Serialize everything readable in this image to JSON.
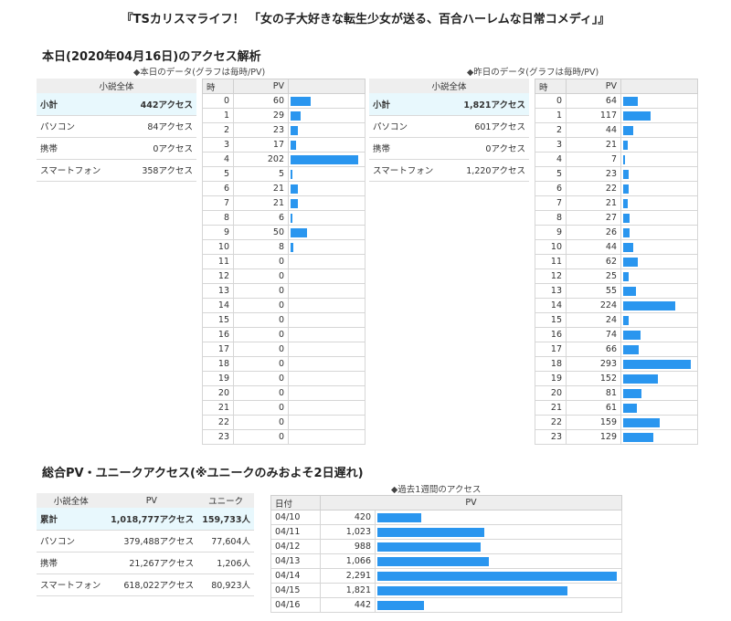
{
  "page_title": "『TSカリスマライフ！ 「女の子大好きな転生少女が送る、百合ハーレムな日常コメディ」』",
  "today": {
    "heading": "本日(2020年04月16日)のアクセス解析",
    "caption": "◆本日のデータ(グラフは毎時/PV)",
    "summary": {
      "header": "小説全体",
      "rows": [
        {
          "label": "小計",
          "value": "442アクセス"
        },
        {
          "label": "パソコン",
          "value": "84アクセス"
        },
        {
          "label": "携帯",
          "value": "0アクセス"
        },
        {
          "label": "スマートフォン",
          "value": "358アクセス"
        }
      ]
    },
    "hourly_header": {
      "hour": "時",
      "pv": "PV"
    },
    "hourly": [
      {
        "hour": "0",
        "pv": "60"
      },
      {
        "hour": "1",
        "pv": "29"
      },
      {
        "hour": "2",
        "pv": "23"
      },
      {
        "hour": "3",
        "pv": "17"
      },
      {
        "hour": "4",
        "pv": "202"
      },
      {
        "hour": "5",
        "pv": "5"
      },
      {
        "hour": "6",
        "pv": "21"
      },
      {
        "hour": "7",
        "pv": "21"
      },
      {
        "hour": "8",
        "pv": "6"
      },
      {
        "hour": "9",
        "pv": "50"
      },
      {
        "hour": "10",
        "pv": "8"
      },
      {
        "hour": "11",
        "pv": "0"
      },
      {
        "hour": "12",
        "pv": "0"
      },
      {
        "hour": "13",
        "pv": "0"
      },
      {
        "hour": "14",
        "pv": "0"
      },
      {
        "hour": "15",
        "pv": "0"
      },
      {
        "hour": "16",
        "pv": "0"
      },
      {
        "hour": "17",
        "pv": "0"
      },
      {
        "hour": "18",
        "pv": "0"
      },
      {
        "hour": "19",
        "pv": "0"
      },
      {
        "hour": "20",
        "pv": "0"
      },
      {
        "hour": "21",
        "pv": "0"
      },
      {
        "hour": "22",
        "pv": "0"
      },
      {
        "hour": "23",
        "pv": "0"
      }
    ],
    "bar_max": 202
  },
  "yesterday": {
    "caption": "◆昨日のデータ(グラフは毎時/PV)",
    "summary": {
      "header": "小説全体",
      "rows": [
        {
          "label": "小計",
          "value": "1,821アクセス"
        },
        {
          "label": "パソコン",
          "value": "601アクセス"
        },
        {
          "label": "携帯",
          "value": "0アクセス"
        },
        {
          "label": "スマートフォン",
          "value": "1,220アクセス"
        }
      ]
    },
    "hourly_header": {
      "hour": "時",
      "pv": "PV"
    },
    "hourly": [
      {
        "hour": "0",
        "pv": "64"
      },
      {
        "hour": "1",
        "pv": "117"
      },
      {
        "hour": "2",
        "pv": "44"
      },
      {
        "hour": "3",
        "pv": "21"
      },
      {
        "hour": "4",
        "pv": "7"
      },
      {
        "hour": "5",
        "pv": "23"
      },
      {
        "hour": "6",
        "pv": "22"
      },
      {
        "hour": "7",
        "pv": "21"
      },
      {
        "hour": "8",
        "pv": "27"
      },
      {
        "hour": "9",
        "pv": "26"
      },
      {
        "hour": "10",
        "pv": "44"
      },
      {
        "hour": "11",
        "pv": "62"
      },
      {
        "hour": "12",
        "pv": "25"
      },
      {
        "hour": "13",
        "pv": "55"
      },
      {
        "hour": "14",
        "pv": "224"
      },
      {
        "hour": "15",
        "pv": "24"
      },
      {
        "hour": "16",
        "pv": "74"
      },
      {
        "hour": "17",
        "pv": "66"
      },
      {
        "hour": "18",
        "pv": "293"
      },
      {
        "hour": "19",
        "pv": "152"
      },
      {
        "hour": "20",
        "pv": "81"
      },
      {
        "hour": "21",
        "pv": "61"
      },
      {
        "hour": "22",
        "pv": "159"
      },
      {
        "hour": "23",
        "pv": "129"
      }
    ],
    "bar_max": 293
  },
  "total": {
    "heading": "総合PV・ユニークアクセス(※ユニークのみおよそ2日遅れ)",
    "summary": {
      "headers": [
        "小説全体",
        "PV",
        "ユニーク"
      ],
      "rows": [
        {
          "label": "累計",
          "pv": "1,018,777アクセス",
          "unique": "159,733人"
        },
        {
          "label": "パソコン",
          "pv": "379,488アクセス",
          "unique": "77,604人"
        },
        {
          "label": "携帯",
          "pv": "21,267アクセス",
          "unique": "1,206人"
        },
        {
          "label": "スマートフォン",
          "pv": "618,022アクセス",
          "unique": "80,923人"
        }
      ]
    },
    "weekly_caption": "◆過去1週間のアクセス",
    "weekly_header": {
      "date": "日付",
      "pv": "PV"
    },
    "weekly": [
      {
        "date": "04/10",
        "pv": "420"
      },
      {
        "date": "04/11",
        "pv": "1,023"
      },
      {
        "date": "04/12",
        "pv": "988"
      },
      {
        "date": "04/13",
        "pv": "1,066"
      },
      {
        "date": "04/14",
        "pv": "2,291"
      },
      {
        "date": "04/15",
        "pv": "1,821"
      },
      {
        "date": "04/16",
        "pv": "442"
      }
    ],
    "bar_max": 2291
  },
  "colors": {
    "bar": "#2a96ef",
    "header_bg": "#eeeeee",
    "subtotal_bg": "#e8f8fd"
  }
}
